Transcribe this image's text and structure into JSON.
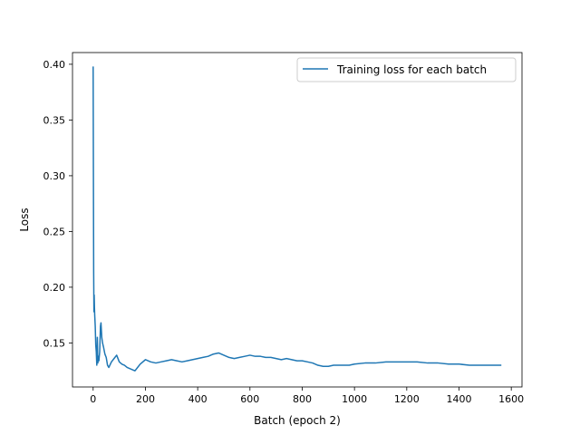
{
  "chart_data": {
    "type": "line",
    "xlabel": "Batch (epoch 2)",
    "ylabel": "Loss",
    "xlim": [
      -79,
      1641
    ],
    "ylim": [
      0.1105,
      0.4105
    ],
    "xticks": [
      0,
      200,
      400,
      600,
      800,
      1000,
      1200,
      1400,
      1600
    ],
    "yticks": [
      0.15,
      0.2,
      0.25,
      0.3,
      0.35,
      0.4
    ],
    "grid": false,
    "legend_position": "top-right",
    "series": [
      {
        "name": "Training loss for each batch",
        "color": "#1f77b4",
        "x": [
          0,
          1,
          2,
          3,
          4,
          5,
          6,
          8,
          10,
          12,
          14,
          16,
          18,
          20,
          22,
          25,
          28,
          30,
          33,
          36,
          40,
          45,
          50,
          55,
          60,
          70,
          80,
          90,
          100,
          110,
          120,
          130,
          140,
          150,
          160,
          170,
          180,
          200,
          220,
          240,
          260,
          280,
          300,
          320,
          340,
          360,
          380,
          400,
          420,
          440,
          460,
          480,
          500,
          520,
          540,
          560,
          580,
          600,
          620,
          640,
          660,
          680,
          700,
          720,
          740,
          760,
          780,
          800,
          820,
          840,
          860,
          880,
          900,
          920,
          940,
          960,
          980,
          1000,
          1040,
          1080,
          1120,
          1160,
          1200,
          1240,
          1280,
          1320,
          1360,
          1400,
          1440,
          1480,
          1520,
          1562
        ],
        "y": [
          0.398,
          0.305,
          0.215,
          0.178,
          0.193,
          0.182,
          0.175,
          0.165,
          0.148,
          0.142,
          0.13,
          0.155,
          0.132,
          0.138,
          0.134,
          0.142,
          0.165,
          0.168,
          0.155,
          0.15,
          0.146,
          0.14,
          0.137,
          0.13,
          0.128,
          0.133,
          0.136,
          0.139,
          0.133,
          0.131,
          0.13,
          0.128,
          0.127,
          0.126,
          0.125,
          0.128,
          0.131,
          0.135,
          0.133,
          0.132,
          0.133,
          0.134,
          0.135,
          0.134,
          0.133,
          0.134,
          0.135,
          0.136,
          0.137,
          0.138,
          0.14,
          0.141,
          0.139,
          0.137,
          0.136,
          0.137,
          0.138,
          0.139,
          0.138,
          0.138,
          0.137,
          0.137,
          0.136,
          0.135,
          0.136,
          0.135,
          0.134,
          0.134,
          0.133,
          0.132,
          0.13,
          0.129,
          0.129,
          0.13,
          0.13,
          0.13,
          0.13,
          0.131,
          0.132,
          0.132,
          0.133,
          0.133,
          0.133,
          0.133,
          0.132,
          0.132,
          0.131,
          0.131,
          0.13,
          0.13,
          0.13,
          0.13
        ]
      }
    ]
  }
}
